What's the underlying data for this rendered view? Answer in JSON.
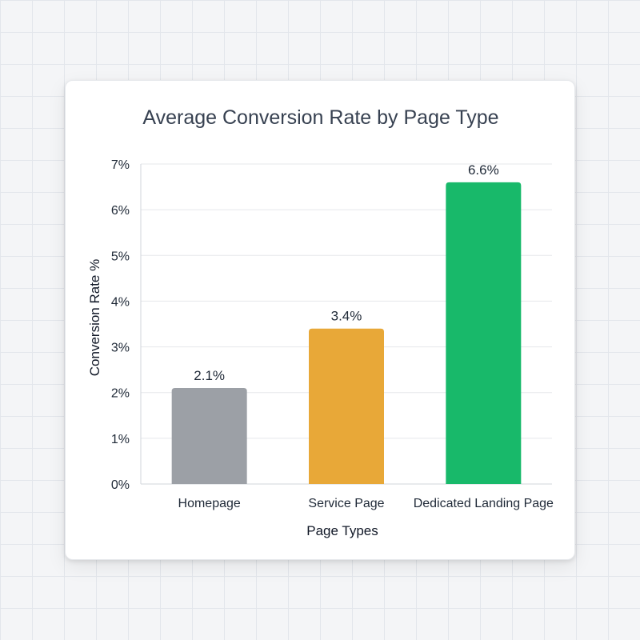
{
  "chart_data": {
    "type": "bar",
    "title": "Average Conversion Rate by Page Type",
    "xlabel": "Page Types",
    "ylabel": "Conversion Rate %",
    "categories": [
      "Homepage",
      "Service Page",
      "Dedicated Landing Page"
    ],
    "values": [
      2.1,
      3.4,
      6.6
    ],
    "value_labels": [
      "2.1%",
      "3.4%",
      "6.6%"
    ],
    "colors": [
      "#9ca0a6",
      "#e8a838",
      "#18b96a"
    ],
    "ylim": [
      0,
      7
    ],
    "yticks": [
      0,
      1,
      2,
      3,
      4,
      5,
      6,
      7
    ],
    "ytick_labels": [
      "0%",
      "1%",
      "2%",
      "3%",
      "4%",
      "5%",
      "6%",
      "7%"
    ],
    "grid": true,
    "legend": "none"
  }
}
